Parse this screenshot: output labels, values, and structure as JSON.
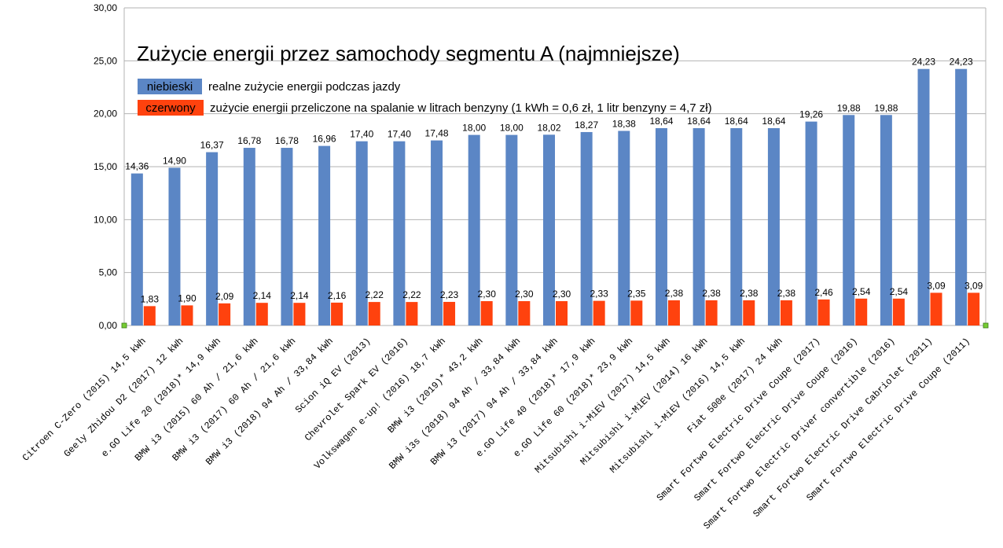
{
  "chart_data": {
    "type": "bar",
    "title": "Zużycie energii przez samochody segmentu A (najmniejsze)",
    "xlabel": "",
    "ylabel": "",
    "ylim": [
      0,
      30
    ],
    "yticks": [
      "0,00",
      "5,00",
      "10,00",
      "15,00",
      "20,00",
      "25,00",
      "30,00"
    ],
    "grid": true,
    "legend_position": "top-left",
    "categories": [
      "Citroen C-Zero (2015) 14,5 kWh",
      "Geely Zhidou D2 (2017) 12 kWh",
      "e.GO Life 20 (2018)* 14,9 kWh",
      "BMW i3 (2015) 60 Ah / 21,6 kWh",
      "BMW i3 (2017) 60 Ah / 21,6 kWh",
      "BMW i3 (2018) 94 Ah / 33,84 kWh",
      "Scion iQ EV (2013)",
      "Chevrolet Spark EV (2016)",
      "Volkswagen e-up! (2016) 18,7 kWh",
      "BMW i3 (2019)* 43,2 kWh",
      "BMW i3s (2018) 94 Ah / 33,84 kWh",
      "BMW i3 (2017) 94 Ah / 33,84 kWh",
      "e.GO Life 40 (2018)* 17,9 kWh",
      "e.GO Life 60 (2018)* 23,9 kWh",
      "Mitsubishi i-MiEV (2017) 14,5 kWh",
      "Mitsubishi i-MiEV (2014) 16 kWh",
      "Mitsubishi i-MiEV (2016) 14,5 kWh",
      "Fiat 500e (2017) 24 kWh",
      "Smart Fortwo Electric Drive Coupe (2017)",
      "Smart Fortwo Electric Drive Coupe (2016)",
      "Smart Fortwo Electric Driver convertible (2016)",
      "Smart Fortwo Electric Drive Cabriolet (2011)",
      "Smart Fortwo Electric Drive Coupe (2011)"
    ],
    "series": [
      {
        "name": "niebieski",
        "color": "#5b86c5",
        "values": [
          14.36,
          14.9,
          16.37,
          16.78,
          16.78,
          16.96,
          17.4,
          17.4,
          17.48,
          18.0,
          18.0,
          18.02,
          18.27,
          18.38,
          18.64,
          18.64,
          18.64,
          18.64,
          19.26,
          19.88,
          19.88,
          24.23,
          24.23
        ],
        "labels": [
          "14,36",
          "14,90",
          "16,37",
          "16,78",
          "16,78",
          "16,96",
          "17,40",
          "17,40",
          "17,48",
          "18,00",
          "18,00",
          "18,02",
          "18,27",
          "18,38",
          "18,64",
          "18,64",
          "18,64",
          "18,64",
          "19,26",
          "19,88",
          "19,88",
          "24,23",
          "24,23"
        ]
      },
      {
        "name": "czerwony",
        "color": "#ff420e",
        "values": [
          1.83,
          1.9,
          2.09,
          2.14,
          2.14,
          2.16,
          2.22,
          2.22,
          2.23,
          2.3,
          2.3,
          2.3,
          2.33,
          2.35,
          2.38,
          2.38,
          2.38,
          2.38,
          2.46,
          2.54,
          2.54,
          3.09,
          3.09
        ],
        "labels": [
          "1,83",
          "1,90",
          "2,09",
          "2,14",
          "2,14",
          "2,16",
          "2,22",
          "2,22",
          "2,23",
          "2,30",
          "2,30",
          "2,30",
          "2,33",
          "2,35",
          "2,38",
          "2,38",
          "2,38",
          "2,38",
          "2,46",
          "2,54",
          "2,54",
          "3,09",
          "3,09"
        ]
      }
    ],
    "legend": [
      {
        "key": "niebieski",
        "text": "realne zużycie energii podczas jazdy",
        "color": "#5b86c5"
      },
      {
        "key": "czerwony",
        "text": "zużycie energii przeliczone na spalanie w litrach benzyny (1 kWh = 0,6 zł, 1 litr benzyny = 4,7 zł)",
        "color": "#ff420e"
      }
    ]
  }
}
